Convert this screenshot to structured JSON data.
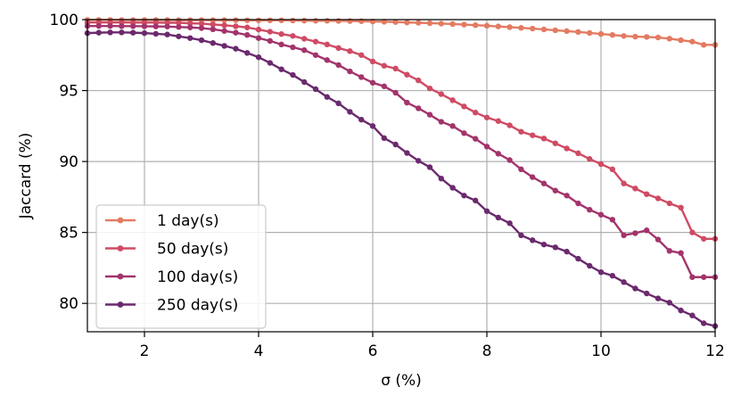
{
  "chart_data": {
    "type": "line",
    "title": "",
    "xlabel": "σ (%)",
    "ylabel": "Jaccard (%)",
    "xlim": [
      1,
      12
    ],
    "ylim": [
      78,
      100
    ],
    "xticks": [
      2,
      4,
      6,
      8,
      10,
      12
    ],
    "yticks": [
      80,
      85,
      90,
      95,
      100
    ],
    "grid": true,
    "legend_position": "lower-left",
    "x": [
      1.0,
      1.2,
      1.4,
      1.6,
      1.8,
      2.0,
      2.2,
      2.4,
      2.6,
      2.8,
      3.0,
      3.2,
      3.4,
      3.6,
      3.8,
      4.0,
      4.2,
      4.4,
      4.6,
      4.8,
      5.0,
      5.2,
      5.4,
      5.6,
      5.8,
      6.0,
      6.2,
      6.4,
      6.6,
      6.8,
      7.0,
      7.2,
      7.4,
      7.6,
      7.8,
      8.0,
      8.2,
      8.4,
      8.6,
      8.8,
      9.0,
      9.2,
      9.4,
      9.6,
      9.8,
      10.0,
      10.2,
      10.4,
      10.6,
      10.8,
      11.0,
      11.2,
      11.4,
      11.6,
      11.8,
      12.0
    ],
    "series": [
      {
        "name": "1 day(s)",
        "color": "#e37b62",
        "values": [
          99.98,
          99.98,
          99.98,
          99.97,
          99.97,
          99.97,
          99.97,
          99.97,
          99.96,
          99.96,
          99.96,
          99.96,
          99.96,
          99.96,
          99.95,
          99.95,
          99.95,
          99.95,
          99.94,
          99.93,
          99.92,
          99.92,
          99.91,
          99.9,
          99.89,
          99.87,
          99.85,
          99.83,
          99.8,
          99.78,
          99.75,
          99.72,
          99.69,
          99.65,
          99.61,
          99.57,
          99.52,
          99.47,
          99.42,
          99.37,
          99.31,
          99.25,
          99.19,
          99.13,
          99.06,
          98.99,
          98.92,
          98.85,
          98.8,
          98.78,
          98.74,
          98.66,
          98.55,
          98.45,
          98.22,
          98.22
        ]
      },
      {
        "name": "50 day(s)",
        "color": "#cf4b64",
        "values": [
          99.8,
          99.8,
          99.8,
          99.8,
          99.79,
          99.79,
          99.79,
          99.78,
          99.78,
          99.74,
          99.72,
          99.66,
          99.6,
          99.53,
          99.45,
          99.3,
          99.15,
          98.98,
          98.85,
          98.65,
          98.45,
          98.25,
          98.0,
          97.78,
          97.5,
          97.05,
          96.75,
          96.55,
          96.12,
          95.72,
          95.15,
          94.75,
          94.32,
          93.88,
          93.45,
          93.1,
          92.85,
          92.55,
          92.1,
          91.85,
          91.62,
          91.28,
          90.92,
          90.58,
          90.18,
          89.82,
          89.45,
          88.45,
          88.1,
          87.7,
          87.4,
          87.05,
          86.75,
          85.0,
          84.55,
          84.55
        ]
      },
      {
        "name": "100 day(s)",
        "color": "#a3346b",
        "values": [
          99.55,
          99.55,
          99.55,
          99.54,
          99.54,
          99.53,
          99.52,
          99.51,
          99.48,
          99.45,
          99.4,
          99.32,
          99.2,
          99.08,
          98.92,
          98.7,
          98.5,
          98.25,
          98.05,
          97.85,
          97.5,
          97.15,
          96.8,
          96.35,
          95.95,
          95.55,
          95.3,
          94.85,
          94.15,
          93.75,
          93.3,
          92.8,
          92.5,
          92.0,
          91.6,
          91.05,
          90.55,
          90.1,
          89.45,
          88.9,
          88.45,
          87.95,
          87.6,
          87.05,
          86.6,
          86.25,
          85.9,
          84.8,
          84.95,
          85.15,
          84.5,
          83.7,
          83.55,
          81.85,
          81.85,
          81.85
        ]
      },
      {
        "name": "250 day(s)",
        "color": "#6b2a6d",
        "values": [
          99.05,
          99.08,
          99.1,
          99.1,
          99.08,
          99.05,
          99.0,
          98.95,
          98.82,
          98.7,
          98.55,
          98.35,
          98.15,
          97.95,
          97.65,
          97.35,
          96.95,
          96.5,
          96.1,
          95.6,
          95.1,
          94.55,
          94.1,
          93.5,
          92.95,
          92.5,
          91.65,
          91.2,
          90.6,
          90.05,
          89.6,
          88.8,
          88.15,
          87.6,
          87.25,
          86.5,
          86.05,
          85.65,
          84.8,
          84.45,
          84.15,
          83.95,
          83.65,
          83.15,
          82.65,
          82.2,
          81.95,
          81.5,
          81.05,
          80.7,
          80.35,
          80.05,
          79.5,
          79.15,
          78.6,
          78.4
        ]
      }
    ]
  }
}
